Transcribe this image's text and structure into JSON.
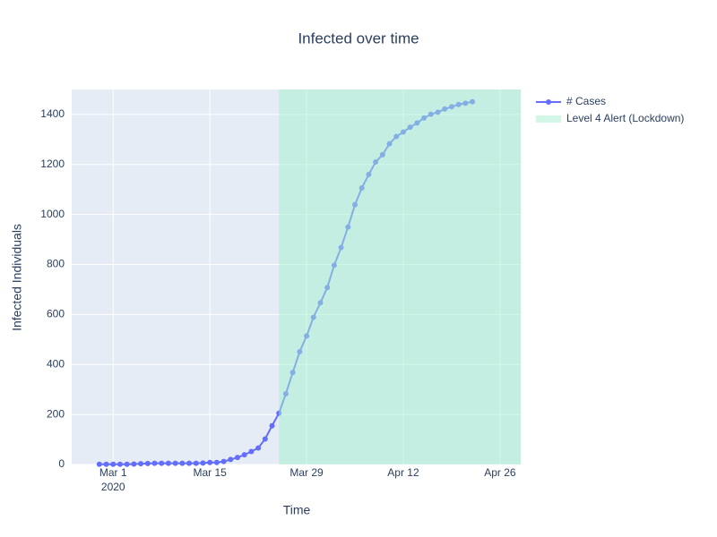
{
  "chart_data": {
    "type": "line",
    "title": "Infected over time",
    "x_label": "Time",
    "y_label": "Infected Individuals",
    "x": [
      "2020-02-28",
      "2020-02-29",
      "2020-03-01",
      "2020-03-02",
      "2020-03-03",
      "2020-03-04",
      "2020-03-05",
      "2020-03-06",
      "2020-03-07",
      "2020-03-08",
      "2020-03-09",
      "2020-03-10",
      "2020-03-11",
      "2020-03-12",
      "2020-03-13",
      "2020-03-14",
      "2020-03-15",
      "2020-03-16",
      "2020-03-17",
      "2020-03-18",
      "2020-03-19",
      "2020-03-20",
      "2020-03-21",
      "2020-03-22",
      "2020-03-23",
      "2020-03-24",
      "2020-03-25",
      "2020-03-26",
      "2020-03-27",
      "2020-03-28",
      "2020-03-29",
      "2020-03-30",
      "2020-03-31",
      "2020-04-01",
      "2020-04-02",
      "2020-04-03",
      "2020-04-04",
      "2020-04-05",
      "2020-04-06",
      "2020-04-07",
      "2020-04-08",
      "2020-04-09",
      "2020-04-10",
      "2020-04-11",
      "2020-04-12",
      "2020-04-13",
      "2020-04-14",
      "2020-04-15",
      "2020-04-16",
      "2020-04-17",
      "2020-04-18",
      "2020-04-19",
      "2020-04-20",
      "2020-04-21",
      "2020-04-22"
    ],
    "series": [
      {
        "name": "# Cases",
        "color": "#636efa",
        "values": [
          1,
          1,
          1,
          1,
          1,
          2,
          3,
          4,
          5,
          5,
          5,
          5,
          5,
          5,
          5,
          6,
          8,
          8,
          12,
          20,
          28,
          39,
          52,
          66,
          102,
          155,
          205,
          283,
          368,
          451,
          514,
          589,
          647,
          708,
          797,
          868,
          950,
          1039,
          1106,
          1160,
          1210,
          1239,
          1283,
          1312,
          1330,
          1349,
          1366,
          1386,
          1401,
          1409,
          1422,
          1431,
          1440,
          1445,
          1451
        ]
      }
    ],
    "regions": [
      {
        "name": "Level 4 Alert (Lockdown)",
        "x0": "2020-03-25",
        "x1": "2020-04-29",
        "color": "#a6efcf"
      }
    ],
    "xlim": [
      "2020-02-24",
      "2020-04-29"
    ],
    "xticks": [
      {
        "value": "2020-03-01",
        "label": "Mar 1",
        "sublabel": "2020"
      },
      {
        "value": "2020-03-15",
        "label": "Mar 15"
      },
      {
        "value": "2020-03-29",
        "label": "Mar 29"
      },
      {
        "value": "2020-04-12",
        "label": "Apr 12"
      },
      {
        "value": "2020-04-26",
        "label": "Apr 26"
      }
    ],
    "ylim": [
      0,
      1500
    ],
    "yticks": [
      0,
      200,
      400,
      600,
      800,
      1000,
      1200,
      1400
    ],
    "grid": true,
    "legend": "right"
  }
}
